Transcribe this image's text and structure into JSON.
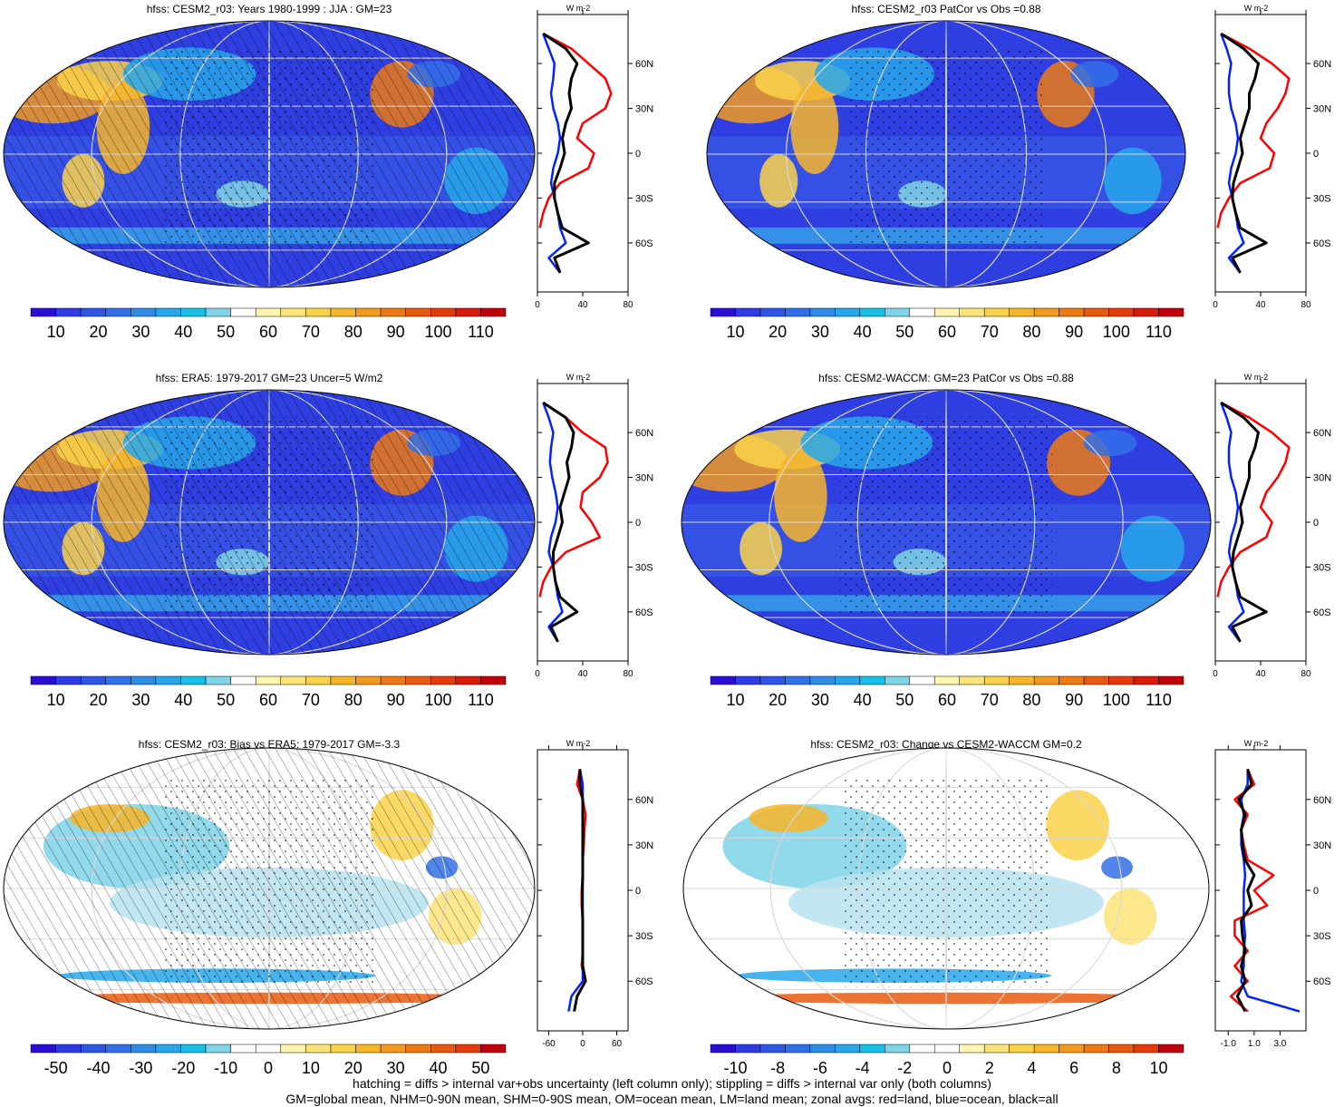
{
  "panels": [
    {
      "title": "hfss: CESM2_r03: Years 1980-1999 : JJA : GM=23",
      "colorbar_labels": [
        "10",
        "20",
        "30",
        "40",
        "50",
        "60",
        "70",
        "80",
        "90",
        "100",
        "110"
      ],
      "colorbar_colors": [
        "#2a0ed8",
        "#2e3be6",
        "#2f55e6",
        "#3270e8",
        "#2f8ce6",
        "#27a7ea",
        "#18bfe6",
        "#7fd4e8",
        "#ffffff",
        "#fff4b0",
        "#fde47a",
        "#fbd24a",
        "#f7b52a",
        "#f29a1e",
        "#ec7a14",
        "#e85a10",
        "#e43a0c",
        "#d81a0a",
        "#c2000c"
      ],
      "zonal_unit": "W m-2",
      "zonal_xticks": [
        "0",
        "40",
        "80"
      ],
      "zonal_yticks": [
        "60N",
        "30N",
        "0",
        "30S",
        "60S"
      ],
      "map_palette": "abs"
    },
    {
      "title": "hfss: CESM2_r03 PatCor vs Obs =0.88",
      "colorbar_labels": [
        "10",
        "20",
        "30",
        "40",
        "50",
        "60",
        "70",
        "80",
        "90",
        "100",
        "110"
      ],
      "colorbar_colors": [
        "#2a0ed8",
        "#2e3be6",
        "#2f55e6",
        "#3270e8",
        "#2f8ce6",
        "#27a7ea",
        "#18bfe6",
        "#7fd4e8",
        "#ffffff",
        "#fff4b0",
        "#fde47a",
        "#fbd24a",
        "#f7b52a",
        "#f29a1e",
        "#ec7a14",
        "#e85a10",
        "#e43a0c",
        "#d81a0a",
        "#c2000c"
      ],
      "zonal_unit": "W m-2",
      "zonal_xticks": [
        "0",
        "40",
        "80"
      ],
      "zonal_yticks": [
        "60N",
        "30N",
        "0",
        "30S",
        "60S"
      ],
      "map_palette": "abs"
    },
    {
      "title": "hfss: ERA5: 1979-2017 GM=23 Uncer=5 W/m2",
      "colorbar_labels": [
        "10",
        "20",
        "30",
        "40",
        "50",
        "60",
        "70",
        "80",
        "90",
        "100",
        "110"
      ],
      "colorbar_colors": [
        "#2a0ed8",
        "#2e3be6",
        "#2f55e6",
        "#3270e8",
        "#2f8ce6",
        "#27a7ea",
        "#18bfe6",
        "#7fd4e8",
        "#ffffff",
        "#fff4b0",
        "#fde47a",
        "#fbd24a",
        "#f7b52a",
        "#f29a1e",
        "#ec7a14",
        "#e85a10",
        "#e43a0c",
        "#d81a0a",
        "#c2000c"
      ],
      "zonal_unit": "W m-2",
      "zonal_xticks": [
        "0",
        "40",
        "80"
      ],
      "zonal_yticks": [
        "60N",
        "30N",
        "0",
        "30S",
        "60S"
      ],
      "map_palette": "abs"
    },
    {
      "title": "hfss: CESM2-WACCM: GM=23 PatCor vs Obs =0.88",
      "colorbar_labels": [
        "10",
        "20",
        "30",
        "40",
        "50",
        "60",
        "70",
        "80",
        "90",
        "100",
        "110"
      ],
      "colorbar_colors": [
        "#2a0ed8",
        "#2e3be6",
        "#2f55e6",
        "#3270e8",
        "#2f8ce6",
        "#27a7ea",
        "#18bfe6",
        "#7fd4e8",
        "#ffffff",
        "#fff4b0",
        "#fde47a",
        "#fbd24a",
        "#f7b52a",
        "#f29a1e",
        "#ec7a14",
        "#e85a10",
        "#e43a0c",
        "#d81a0a",
        "#c2000c"
      ],
      "zonal_unit": "W m-2",
      "zonal_xticks": [
        "0",
        "40",
        "80"
      ],
      "zonal_yticks": [
        "60N",
        "30N",
        "0",
        "30S",
        "60S"
      ],
      "map_palette": "abs"
    },
    {
      "title": "hfss: CESM2_r03: Bias vs ERA5: 1979-2017 GM=-3.3",
      "colorbar_labels": [
        "-50",
        "-40",
        "-30",
        "-20",
        "-10",
        "0",
        "10",
        "20",
        "30",
        "40",
        "50"
      ],
      "colorbar_colors": [
        "#2a0ed8",
        "#2e3be6",
        "#2f55e6",
        "#3270e8",
        "#2f8ce6",
        "#27a7ea",
        "#18bfe6",
        "#7fd4e8",
        "#ffffff",
        "#ffffff",
        "#fff4b0",
        "#fde47a",
        "#fbd24a",
        "#f7b52a",
        "#f29a1e",
        "#ec7a14",
        "#e85a10",
        "#e43a0c",
        "#c2000c"
      ],
      "zonal_unit": "W m-2",
      "zonal_xticks": [
        "-60",
        "0",
        "60"
      ],
      "zonal_yticks": [
        "60N",
        "30N",
        "0",
        "30S",
        "60S"
      ],
      "map_palette": "diff"
    },
    {
      "title": "hfss: CESM2_r03: Change vs CESM2-WACCM GM=0.2",
      "colorbar_labels": [
        "-10",
        "-8",
        "-6",
        "-4",
        "-2",
        "0",
        "2",
        "4",
        "6",
        "8",
        "10"
      ],
      "colorbar_colors": [
        "#2a0ed8",
        "#2e3be6",
        "#2f55e6",
        "#3270e8",
        "#2f8ce6",
        "#27a7ea",
        "#18bfe6",
        "#7fd4e8",
        "#ffffff",
        "#ffffff",
        "#fff4b0",
        "#fde47a",
        "#fbd24a",
        "#f7b52a",
        "#f29a1e",
        "#ec7a14",
        "#e85a10",
        "#e43a0c",
        "#c2000c"
      ],
      "zonal_unit": "W m-2",
      "zonal_xticks": [
        "-1.0",
        "1.0",
        "3.0"
      ],
      "zonal_yticks": [
        "60N",
        "30N",
        "0",
        "30S",
        "60S"
      ],
      "map_palette": "diff"
    }
  ],
  "footer": {
    "line1": "hatching = diffs > internal var+obs uncertainty (left column only); stippling = diffs > internal var only (both columns)",
    "line2": "GM=global mean, NHM=0-90N mean, SHM=0-90S mean, OM=ocean mean, LM=land mean; zonal avgs: red=land, blue=ocean, black=all"
  },
  "chart_data": [
    {
      "type": "line",
      "title": "hfss: CESM2_r03: Years 1980-1999 : JJA : GM=23",
      "xlabel": "W m-2",
      "xlim": [
        0,
        80
      ],
      "y_latitude": [
        80,
        70,
        60,
        50,
        40,
        30,
        20,
        10,
        0,
        -10,
        -20,
        -30,
        -40,
        -50,
        -60,
        -70,
        -80
      ],
      "series": [
        {
          "name": "red=land",
          "values": [
            5,
            30,
            45,
            60,
            65,
            60,
            40,
            35,
            50,
            45,
            20,
            10,
            5,
            2,
            null,
            null,
            5
          ]
        },
        {
          "name": "blue=ocean",
          "values": [
            5,
            10,
            15,
            14,
            12,
            14,
            18,
            20,
            18,
            14,
            12,
            15,
            18,
            20,
            25,
            10,
            20
          ]
        },
        {
          "name": "black=all",
          "values": [
            5,
            25,
            35,
            30,
            28,
            30,
            25,
            22,
            24,
            20,
            15,
            15,
            18,
            22,
            45,
            15,
            20
          ]
        }
      ]
    },
    {
      "type": "line",
      "title": "hfss: CESM2_r03 PatCor vs Obs =0.88",
      "xlabel": "W m-2",
      "xlim": [
        0,
        80
      ],
      "y_latitude": [
        80,
        70,
        60,
        50,
        40,
        30,
        20,
        10,
        0,
        -10,
        -20,
        -30,
        -40,
        -50,
        -60,
        -70,
        -80
      ],
      "series": [
        {
          "name": "red=land",
          "values": [
            5,
            30,
            50,
            65,
            62,
            55,
            45,
            40,
            52,
            48,
            22,
            12,
            5,
            2,
            null,
            null,
            5
          ]
        },
        {
          "name": "blue=ocean",
          "values": [
            5,
            10,
            14,
            12,
            12,
            14,
            18,
            20,
            18,
            14,
            12,
            15,
            18,
            20,
            25,
            12,
            22
          ]
        },
        {
          "name": "black=all",
          "values": [
            5,
            25,
            38,
            35,
            30,
            30,
            26,
            22,
            24,
            20,
            16,
            15,
            18,
            22,
            45,
            15,
            22
          ]
        }
      ]
    },
    {
      "type": "line",
      "title": "hfss: ERA5: 1979-2017 GM=23 Uncer=5 W/m2",
      "xlabel": "W m-2",
      "xlim": [
        0,
        80
      ],
      "y_latitude": [
        80,
        70,
        60,
        50,
        40,
        30,
        20,
        10,
        0,
        -10,
        -20,
        -30,
        -40,
        -50,
        -60,
        -70,
        -80
      ],
      "series": [
        {
          "name": "red=land",
          "values": [
            5,
            25,
            40,
            60,
            62,
            55,
            40,
            38,
            48,
            55,
            25,
            12,
            5,
            2,
            null,
            null,
            5
          ]
        },
        {
          "name": "blue=ocean",
          "values": [
            5,
            10,
            14,
            12,
            11,
            13,
            16,
            18,
            16,
            12,
            10,
            14,
            16,
            18,
            22,
            10,
            18
          ]
        },
        {
          "name": "black=all",
          "values": [
            5,
            25,
            32,
            30,
            26,
            28,
            24,
            20,
            22,
            18,
            14,
            14,
            16,
            20,
            35,
            12,
            18
          ]
        }
      ]
    },
    {
      "type": "line",
      "title": "hfss: CESM2-WACCM: GM=23 PatCor vs Obs =0.88",
      "xlabel": "W m-2",
      "xlim": [
        0,
        80
      ],
      "y_latitude": [
        80,
        70,
        60,
        50,
        40,
        30,
        20,
        10,
        0,
        -10,
        -20,
        -30,
        -40,
        -50,
        -60,
        -70,
        -80
      ],
      "series": [
        {
          "name": "red=land",
          "values": [
            5,
            30,
            50,
            65,
            62,
            55,
            45,
            40,
            50,
            45,
            22,
            12,
            5,
            2,
            null,
            null,
            5
          ]
        },
        {
          "name": "blue=ocean",
          "values": [
            5,
            10,
            14,
            12,
            12,
            14,
            18,
            20,
            18,
            14,
            12,
            15,
            18,
            20,
            25,
            12,
            22
          ]
        },
        {
          "name": "black=all",
          "values": [
            5,
            25,
            38,
            35,
            30,
            30,
            26,
            22,
            24,
            20,
            16,
            15,
            18,
            22,
            45,
            15,
            22
          ]
        }
      ]
    },
    {
      "type": "line",
      "title": "hfss: CESM2_r03: Bias vs ERA5: 1979-2017 GM=-3.3",
      "xlabel": "W m-2",
      "xlim": [
        -80,
        80
      ],
      "y_latitude": [
        80,
        70,
        60,
        50,
        40,
        30,
        20,
        10,
        0,
        -10,
        -20,
        -30,
        -40,
        -50,
        -60,
        -70,
        -80
      ],
      "series": [
        {
          "name": "red=land",
          "values": [
            -5,
            -10,
            0,
            5,
            3,
            2,
            0,
            0,
            -2,
            -2,
            0,
            0,
            0,
            -2,
            5,
            null,
            -5
          ]
        },
        {
          "name": "blue=ocean",
          "values": [
            -5,
            0,
            0,
            0,
            0,
            0,
            0,
            0,
            0,
            0,
            0,
            0,
            0,
            0,
            0,
            -20,
            -25
          ]
        },
        {
          "name": "black=all",
          "values": [
            -5,
            -5,
            0,
            0,
            0,
            0,
            0,
            0,
            -1,
            -1,
            0,
            0,
            0,
            0,
            5,
            -10,
            -15
          ]
        }
      ]
    },
    {
      "type": "line",
      "title": "hfss: CESM2_r03: Change vs CESM2-WACCM GM=0.2",
      "xlabel": "W m-2",
      "xlim": [
        -2,
        5
      ],
      "y_latitude": [
        80,
        70,
        60,
        50,
        40,
        30,
        20,
        10,
        0,
        -10,
        -20,
        -30,
        -40,
        -50,
        -60,
        -70,
        -80
      ],
      "series": [
        {
          "name": "red=land",
          "values": [
            0.5,
            1.0,
            -0.5,
            0.5,
            0,
            0.2,
            0.5,
            2.5,
            1.0,
            2.0,
            -0.5,
            -0.5,
            0.5,
            -0.5,
            0.5,
            -0.8,
            0.5
          ]
        },
        {
          "name": "blue=ocean",
          "values": [
            0.5,
            0.5,
            0,
            0.2,
            0,
            0,
            0.2,
            0.3,
            0.2,
            0.2,
            0.2,
            0.3,
            0.2,
            0.2,
            0,
            0.5,
            4.5
          ]
        },
        {
          "name": "black=all",
          "values": [
            0.5,
            0.8,
            -0.2,
            0.3,
            0,
            0.1,
            0.3,
            1.0,
            0.5,
            0.8,
            0,
            0.1,
            0.3,
            0,
            0.3,
            -0.3,
            0.3
          ]
        }
      ]
    }
  ]
}
